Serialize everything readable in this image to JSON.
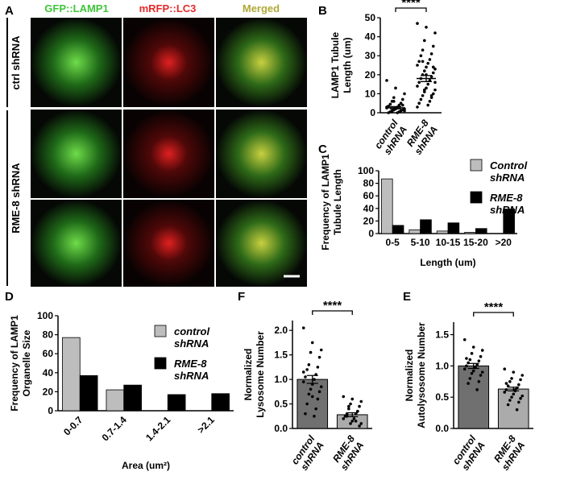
{
  "panel_a": {
    "panel": "A",
    "columns": [
      "GFP::LAMP1",
      "mRFP::LC3",
      "Merged"
    ],
    "rows": [
      "ctrl shRNA",
      "RME-8 shRNA"
    ]
  },
  "chart_data": [
    {
      "panel": "B",
      "type": "strip",
      "y_label": [
        "LAMP1 Tubule",
        "Length (um)"
      ],
      "categories": [
        "control shRNA",
        "RME-8 shRNA"
      ],
      "points": [
        [
          17,
          13,
          10,
          8,
          7,
          6,
          5,
          4.5,
          4,
          3.5,
          3,
          2.5,
          2,
          2,
          1.5,
          1.5,
          1,
          1,
          0.5,
          0.5,
          0,
          0,
          3,
          2,
          1,
          6,
          4,
          0.5
        ],
        [
          47,
          45,
          42,
          38,
          35,
          33,
          31,
          30,
          28,
          27,
          26,
          25,
          24,
          23,
          22,
          21,
          20,
          19,
          18,
          17,
          16,
          15,
          14,
          13,
          12,
          11,
          10,
          9,
          8,
          7,
          6,
          5,
          4,
          3,
          20,
          16,
          12,
          24,
          27,
          9
        ]
      ],
      "means": [
        2.6,
        18
      ],
      "errors": [
        0.6,
        1.6
      ],
      "significance": "****",
      "ylim": [
        0,
        50
      ],
      "yticks": [
        0,
        10,
        20,
        30,
        40,
        50
      ]
    },
    {
      "panel": "C",
      "type": "grouped_bar",
      "y_label": [
        "Frequency of LAMP1",
        "Tubule Length"
      ],
      "x_label": "Length (um)",
      "categories": [
        "0-5",
        "5-10",
        "10-15",
        "15-20",
        ">20"
      ],
      "series": [
        {
          "name": "Control shRNA",
          "color": "#bdbdbd",
          "values": [
            87,
            6,
            4,
            2,
            0
          ]
        },
        {
          "name": "RME-8 shRNA",
          "color": "#000000",
          "values": [
            13,
            22,
            17,
            8,
            39
          ]
        }
      ],
      "ylim": [
        0,
        100
      ],
      "yticks": [
        0,
        20,
        40,
        60,
        80,
        100
      ],
      "legend": "upper right"
    },
    {
      "panel": "D",
      "type": "grouped_bar",
      "y_label": [
        "Frequency of LAMP1",
        "Organelle Size"
      ],
      "x_label": "Area (um²)",
      "categories": [
        "0-0.7",
        "0.7-1.4",
        "1.4-2.1",
        ">2.1"
      ],
      "series": [
        {
          "name": "control shRNA",
          "color": "#bdbdbd",
          "values": [
            77,
            22,
            0,
            0
          ]
        },
        {
          "name": "RME-8 shRNA",
          "color": "#000000",
          "values": [
            37,
            27,
            17,
            18
          ]
        }
      ],
      "ylim": [
        0,
        100
      ],
      "yticks": [
        0,
        20,
        40,
        60,
        80,
        100
      ],
      "legend": "upper right"
    },
    {
      "panel": "F",
      "type": "bar_points",
      "y_label": [
        "Normalized",
        "Lysosome Number"
      ],
      "categories": [
        "control shRNA",
        "RME-8 shRNA"
      ],
      "values": [
        1.0,
        0.28
      ],
      "errors": [
        0.08,
        0.04
      ],
      "colors": [
        "#707070",
        "#ababab"
      ],
      "points": [
        [
          2.05,
          1.75,
          1.6,
          1.55,
          1.45,
          1.3,
          1.25,
          1.2,
          1.1,
          1.05,
          1.0,
          0.95,
          0.9,
          0.85,
          0.8,
          0.75,
          0.7,
          0.6,
          0.5,
          0.4,
          0.3,
          0.25,
          1.15,
          0.65
        ],
        [
          0.65,
          0.6,
          0.55,
          0.5,
          0.45,
          0.4,
          0.35,
          0.3,
          0.3,
          0.25,
          0.2,
          0.2,
          0.15,
          0.1,
          0.1,
          0.05,
          0.45,
          0.35,
          0.25,
          0.15
        ]
      ],
      "significance": "****",
      "ylim": [
        0,
        2.2
      ],
      "yticks": [
        {
          "value": 0,
          "label": "0.0"
        },
        0.5,
        {
          "value": 1,
          "label": "1.0"
        },
        1.5,
        {
          "value": 2,
          "label": "2.0"
        }
      ]
    },
    {
      "panel": "E",
      "type": "bar_points",
      "y_label": [
        "Normalized",
        "Autolysosome Number"
      ],
      "categories": [
        "control shRNA",
        "RME-8 shRNA"
      ],
      "values": [
        1.0,
        0.63
      ],
      "errors": [
        0.04,
        0.03
      ],
      "colors": [
        "#707070",
        "#ababab"
      ],
      "points": [
        [
          1.42,
          1.3,
          1.25,
          1.2,
          1.15,
          1.1,
          1.08,
          1.05,
          1.02,
          1.0,
          0.98,
          0.95,
          0.92,
          0.9,
          0.88,
          0.85,
          0.8,
          0.75,
          0.72,
          0.62,
          1.12,
          0.97
        ],
        [
          0.95,
          0.9,
          0.85,
          0.8,
          0.78,
          0.75,
          0.7,
          0.68,
          0.65,
          0.62,
          0.6,
          0.58,
          0.55,
          0.52,
          0.5,
          0.48,
          0.45,
          0.42,
          0.38,
          0.3,
          0.72,
          0.62
        ]
      ],
      "significance": "****",
      "ylim": [
        0,
        1.7
      ],
      "yticks": [
        {
          "value": 0,
          "label": "0.0"
        },
        0.5,
        {
          "value": 1,
          "label": "1.0"
        },
        1.5
      ]
    }
  ]
}
